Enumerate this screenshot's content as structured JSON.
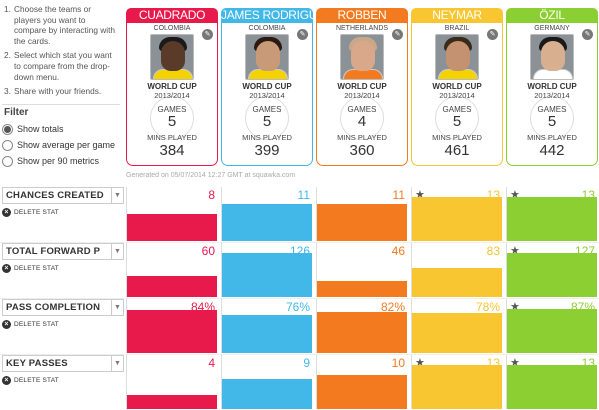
{
  "instructions": [
    {
      "num": "1.",
      "text": "Choose the teams or players you want to compare by interacting with the cards."
    },
    {
      "num": "2.",
      "text": "Select which stat you want to compare from the drop-down menu."
    },
    {
      "num": "3.",
      "text": "Share with your friends."
    }
  ],
  "filter": {
    "title": "Filter",
    "options": [
      {
        "label": "Show totals",
        "checked": true
      },
      {
        "label": "Show average per game",
        "checked": false
      },
      {
        "label": "Show per 90 metrics",
        "checked": false
      }
    ]
  },
  "players": [
    {
      "name": "CUADRADO",
      "country": "COLOMBIA",
      "competition": "WORLD CUP",
      "season": "2013/2014",
      "games_label": "GAMES",
      "games": "5",
      "mins_label": "MINS PLAYED",
      "mins": "384",
      "color": "#e8194b",
      "skin": "#5a3a28",
      "hair": "#1a1a1a",
      "shirt": "#f5d300"
    },
    {
      "name": "JAMES RODRIGU",
      "country": "COLOMBIA",
      "competition": "WORLD CUP",
      "season": "2013/2014",
      "games_label": "GAMES",
      "games": "5",
      "mins_label": "MINS PLAYED",
      "mins": "399",
      "color": "#41b8e8",
      "skin": "#c99a78",
      "hair": "#2a1a10",
      "shirt": "#f5d300"
    },
    {
      "name": "ROBBEN",
      "country": "NETHERLANDS",
      "competition": "WORLD CUP",
      "season": "2013/2014",
      "games_label": "GAMES",
      "games": "4",
      "mins_label": "MINS PLAYED",
      "mins": "360",
      "color": "#f47a20",
      "skin": "#d9a88a",
      "hair": "#c9a88a",
      "shirt": "#f47a20"
    },
    {
      "name": "NEYMAR",
      "country": "BRAZIL",
      "competition": "WORLD CUP",
      "season": "2013/2014",
      "games_label": "GAMES",
      "games": "5",
      "mins_label": "MINS PLAYED",
      "mins": "461",
      "color": "#f7c630",
      "skin": "#c49270",
      "hair": "#3a2a1a",
      "shirt": "#f5d300"
    },
    {
      "name": "ÖZIL",
      "country": "GERMANY",
      "competition": "WORLD CUP",
      "season": "2013/2014",
      "games_label": "GAMES",
      "games": "5",
      "mins_label": "MINS PLAYED",
      "mins": "442",
      "color": "#8ccf32",
      "skin": "#d8b090",
      "hair": "#1a1a1a",
      "shirt": "#ffffff"
    }
  ],
  "generated": "Generated on 05/07/2014 12:27 GMT at squawka.com",
  "delete_label": "DELETE STAT",
  "stats": [
    {
      "label": "CHANCES CREATED",
      "values": [
        "8",
        "11",
        "11",
        "13",
        "13"
      ],
      "fill": [
        0.62,
        0.85,
        0.85,
        1.0,
        1.0
      ],
      "star": [
        false,
        false,
        false,
        true,
        true
      ]
    },
    {
      "label": "TOTAL FORWARD P",
      "values": [
        "60",
        "126",
        "46",
        "83",
        "127"
      ],
      "fill": [
        0.47,
        0.99,
        0.36,
        0.65,
        1.0
      ],
      "star": [
        false,
        false,
        false,
        false,
        true
      ]
    },
    {
      "label": "PASS COMPLETION",
      "values": [
        "84%",
        "76%",
        "82%",
        "78%",
        "87%"
      ],
      "fill": [
        0.97,
        0.87,
        0.94,
        0.9,
        1.0
      ],
      "star": [
        false,
        false,
        false,
        false,
        true
      ]
    },
    {
      "label": "KEY PASSES",
      "values": [
        "4",
        "9",
        "10",
        "13",
        "13"
      ],
      "fill": [
        0.31,
        0.69,
        0.77,
        1.0,
        1.0
      ],
      "star": [
        false,
        false,
        false,
        true,
        true
      ]
    }
  ]
}
